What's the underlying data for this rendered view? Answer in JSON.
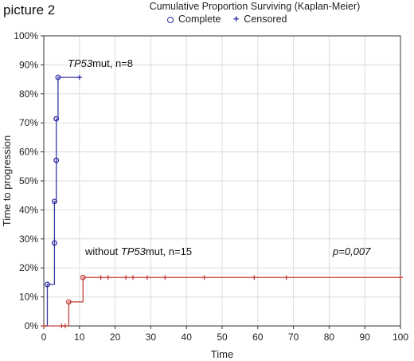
{
  "header": {
    "picture_label": "picture 2",
    "legend_complete": "Complete",
    "legend_censored": "Censored"
  },
  "colors": {
    "tp53": "#3a3aa0",
    "tp53_marker": "#2e2ea8",
    "without": "#c0453e",
    "axis": "#333333",
    "grid": "#dcdcdc"
  },
  "chart_data": {
    "type": "line",
    "title": "Cumulative Proportion Surviving (Kaplan-Meier)",
    "xlabel": "Time",
    "ylabel": "Time to progression",
    "xlim": [
      0,
      100
    ],
    "ylim": [
      0,
      100
    ],
    "x_ticks": [
      0,
      10,
      20,
      30,
      40,
      50,
      60,
      70,
      80,
      90,
      100
    ],
    "y_ticks": [
      0,
      10,
      20,
      30,
      40,
      50,
      60,
      70,
      80,
      90,
      100
    ],
    "y_tick_labels": [
      "0%",
      "10%",
      "20%",
      "30%",
      "40%",
      "50%",
      "60%",
      "70%",
      "80%",
      "90%",
      "100%"
    ],
    "grid": true,
    "legend_position": "top",
    "series": [
      {
        "name": "TP53mut, n=8",
        "label_italic": "TP53",
        "label_rest": "mut, n=8",
        "steps": [
          [
            0,
            0
          ],
          [
            1,
            0
          ],
          [
            1,
            14.3
          ],
          [
            3,
            14.3
          ],
          [
            3,
            28.6
          ],
          [
            3,
            42.9
          ],
          [
            3.5,
            42.9
          ],
          [
            3.5,
            57.1
          ],
          [
            3.5,
            71.4
          ],
          [
            4,
            71.4
          ],
          [
            4,
            85.7
          ],
          [
            10,
            85.7
          ]
        ],
        "complete": [
          [
            1,
            14.3
          ],
          [
            3,
            28.6
          ],
          [
            3,
            42.9
          ],
          [
            3.5,
            57.1
          ],
          [
            3.5,
            71.4
          ],
          [
            4,
            85.7
          ]
        ],
        "censored": [
          [
            10,
            85.7
          ]
        ]
      },
      {
        "name": "without TP53mut, n=15",
        "label_pre": "without ",
        "label_italic": "TP53",
        "label_rest": "mut, n=15",
        "steps": [
          [
            0,
            0
          ],
          [
            7,
            0
          ],
          [
            7,
            8.3
          ],
          [
            11,
            8.3
          ],
          [
            11,
            16.7
          ],
          [
            100,
            16.7
          ]
        ],
        "complete": [
          [
            7,
            8.3
          ],
          [
            11,
            16.7
          ]
        ],
        "censored": [
          [
            0,
            0
          ],
          [
            5,
            0
          ],
          [
            6,
            0
          ],
          [
            16,
            16.7
          ],
          [
            18,
            16.7
          ],
          [
            23,
            16.7
          ],
          [
            25,
            16.7
          ],
          [
            29,
            16.7
          ],
          [
            34,
            16.7
          ],
          [
            45,
            16.7
          ],
          [
            59,
            16.7
          ],
          [
            68,
            16.7
          ],
          [
            100,
            16.7
          ]
        ]
      }
    ],
    "annotations": {
      "p_value": "p=0,007"
    }
  }
}
